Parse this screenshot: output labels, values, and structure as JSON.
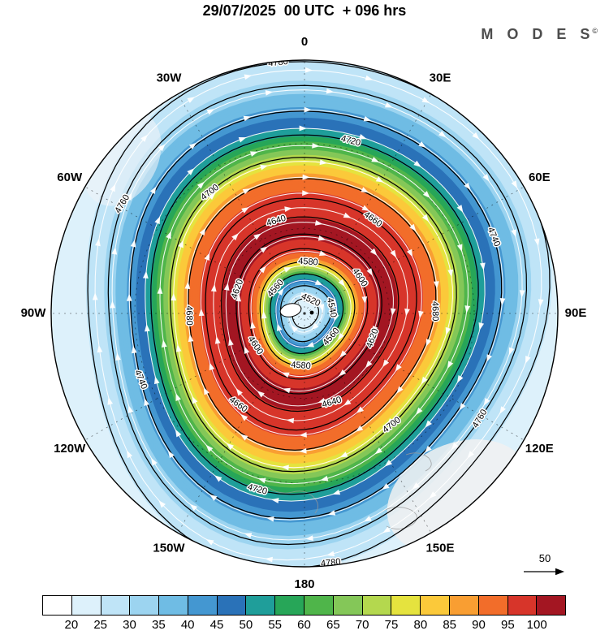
{
  "header": {
    "title": "29/07/2025  00 UTC  + 096 hrs",
    "logo_text": "M O D E S",
    "logo_mark": "©"
  },
  "chart_data": {
    "type": "heatmap",
    "projection": "south-polar-stereographic",
    "title": "29/07/2025 00 UTC + 096 hrs",
    "shaded_field": "wind speed",
    "contour_field": "geopotential height",
    "legend_position": "bottom",
    "grid": "dashed graticule every 30 degrees longitude",
    "longitude_labels": [
      {
        "label": "0",
        "angle_deg": 0
      },
      {
        "label": "30E",
        "angle_deg": 30
      },
      {
        "label": "60E",
        "angle_deg": 60
      },
      {
        "label": "90E",
        "angle_deg": 90
      },
      {
        "label": "120E",
        "angle_deg": 120
      },
      {
        "label": "150E",
        "angle_deg": 150
      },
      {
        "label": "180",
        "angle_deg": 180
      },
      {
        "label": "150W",
        "angle_deg": 210
      },
      {
        "label": "120W",
        "angle_deg": 240
      },
      {
        "label": "90W",
        "angle_deg": 270
      },
      {
        "label": "60W",
        "angle_deg": 300
      },
      {
        "label": "30W",
        "angle_deg": 330
      }
    ],
    "colorbar": {
      "tick_labels": [
        20,
        25,
        30,
        35,
        40,
        45,
        50,
        55,
        60,
        65,
        70,
        75,
        80,
        85,
        90,
        95,
        100
      ],
      "colors": [
        "#ffffff",
        "#ddf1fb",
        "#bfe4f7",
        "#9cd4f0",
        "#6fbce4",
        "#4497d1",
        "#2a72b8",
        "#1f9e9a",
        "#27a658",
        "#4fb54a",
        "#84c758",
        "#b4d84e",
        "#e5e33e",
        "#fbc93a",
        "#f99e32",
        "#f26d2a",
        "#d7352a",
        "#a31622"
      ]
    },
    "contours": {
      "interval": 20,
      "levels": [
        {
          "value": 4520,
          "radius_frac": 0.055
        },
        {
          "value": 4540,
          "radius_frac": 0.105
        },
        {
          "value": 4560,
          "radius_frac": 0.15
        },
        {
          "value": 4580,
          "radius_frac": 0.195
        },
        {
          "value": 4600,
          "radius_frac": 0.245
        },
        {
          "value": 4620,
          "radius_frac": 0.3
        },
        {
          "value": 4640,
          "radius_frac": 0.365
        },
        {
          "value": 4660,
          "radius_frac": 0.435
        },
        {
          "value": 4680,
          "radius_frac": 0.51
        },
        {
          "value": 4700,
          "radius_frac": 0.59
        },
        {
          "value": 4720,
          "radius_frac": 0.675
        },
        {
          "value": 4740,
          "radius_frac": 0.765
        },
        {
          "value": 4760,
          "radius_frac": 0.862
        },
        {
          "value": 4780,
          "radius_frac": 0.952
        }
      ]
    },
    "wind_radial_profile": [
      {
        "radius_frac": 0.0,
        "speed": 26
      },
      {
        "radius_frac": 0.05,
        "speed": 21
      },
      {
        "radius_frac": 0.1,
        "speed": 34
      },
      {
        "radius_frac": 0.15,
        "speed": 55
      },
      {
        "radius_frac": 0.2,
        "speed": 85
      },
      {
        "radius_frac": 0.24,
        "speed": 96
      },
      {
        "radius_frac": 0.3,
        "speed": 101
      },
      {
        "radius_frac": 0.42,
        "speed": 99
      },
      {
        "radius_frac": 0.5,
        "speed": 92
      },
      {
        "radius_frac": 0.56,
        "speed": 80
      },
      {
        "radius_frac": 0.62,
        "speed": 66
      },
      {
        "radius_frac": 0.68,
        "speed": 54
      },
      {
        "radius_frac": 0.75,
        "speed": 44
      },
      {
        "radius_frac": 0.83,
        "speed": 35
      },
      {
        "radius_frac": 0.91,
        "speed": 28
      },
      {
        "radius_frac": 1.0,
        "speed": 23
      }
    ],
    "streamlines": {
      "color": "#ffffff",
      "direction": "clockwise",
      "radii_frac": [
        0.07,
        0.125,
        0.18,
        0.235,
        0.29,
        0.345,
        0.4,
        0.455,
        0.515,
        0.575,
        0.635,
        0.7,
        0.77,
        0.845,
        0.92
      ]
    },
    "reference_vector": {
      "label": "50"
    }
  }
}
